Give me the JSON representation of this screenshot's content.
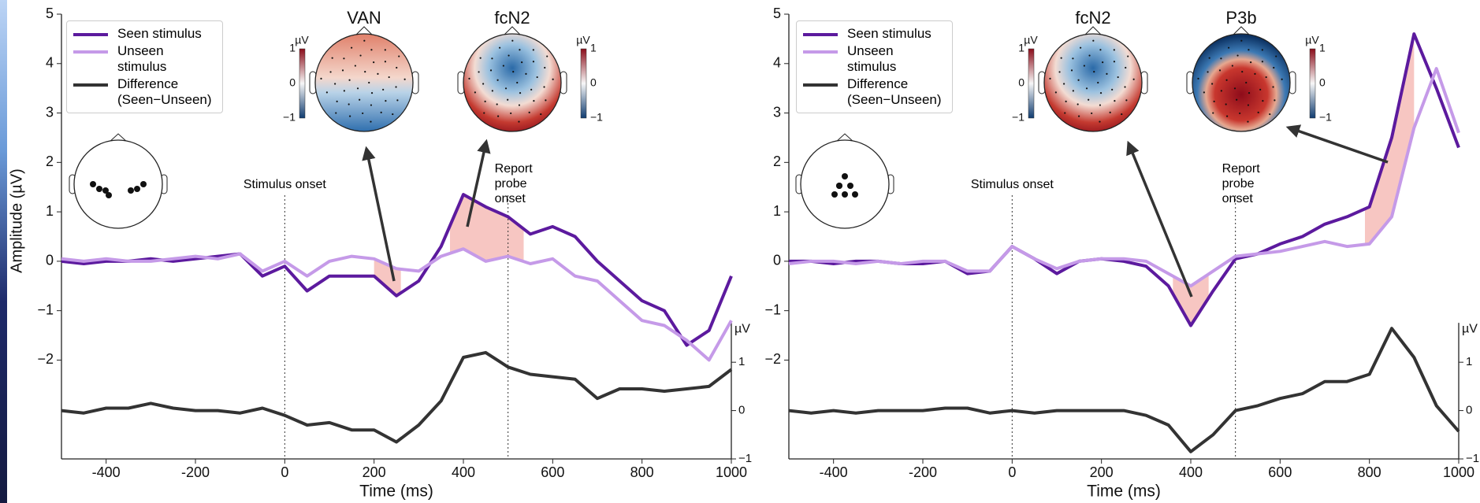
{
  "chart_data": [
    {
      "type": "line",
      "ylabel": "Amplitude (µV)",
      "xlabel": "Time (ms)",
      "y2label": "µV",
      "x": [
        -500,
        -450,
        -400,
        -350,
        -300,
        -250,
        -200,
        -150,
        -100,
        -50,
        0,
        50,
        100,
        150,
        200,
        250,
        300,
        350,
        400,
        450,
        500,
        550,
        600,
        650,
        700,
        750,
        800,
        850,
        900,
        950,
        1000
      ],
      "series": [
        {
          "name": "Seen stimulus",
          "color": "#5c1a9e",
          "values": [
            0,
            -0.05,
            0,
            0,
            0.05,
            0,
            0.05,
            0.1,
            0.15,
            -0.3,
            -0.1,
            -0.6,
            -0.3,
            -0.3,
            -0.3,
            -0.7,
            -0.4,
            0.3,
            1.35,
            1.1,
            0.9,
            0.55,
            0.7,
            0.5,
            0,
            -0.4,
            -0.8,
            -1.0,
            -1.7,
            -1.4,
            -0.3
          ]
        },
        {
          "name": "Unseen stimulus",
          "color": "#c59ae8",
          "values": [
            0.05,
            0,
            0.05,
            0,
            0,
            0.05,
            0.1,
            0.05,
            0.15,
            -0.2,
            0,
            -0.3,
            0,
            0.1,
            0.05,
            -0.15,
            -0.2,
            0.1,
            0.25,
            0,
            0.1,
            -0.05,
            0.05,
            -0.3,
            -0.4,
            -0.8,
            -1.2,
            -1.3,
            -1.6,
            -2.0,
            -1.2
          ]
        },
        {
          "name": "Difference (Seen−Unseen)",
          "color": "#333333",
          "axis": "y2",
          "values": [
            0,
            -0.05,
            0.05,
            0.05,
            0.15,
            0.05,
            0,
            0,
            -0.05,
            0.05,
            -0.1,
            -0.3,
            -0.25,
            -0.4,
            -0.4,
            -0.65,
            -0.3,
            0.2,
            1.1,
            1.2,
            0.9,
            0.75,
            0.7,
            0.65,
            0.25,
            0.45,
            0.45,
            0.4,
            0.45,
            0.5,
            0.85
          ]
        }
      ],
      "highlights": [
        [
          200,
          260
        ],
        [
          370,
          535
        ]
      ],
      "events": [
        {
          "x": 0,
          "label": "Stimulus onset"
        },
        {
          "x": 500,
          "label": "Report probe onset"
        }
      ],
      "xlim": [
        -500,
        1000
      ],
      "xticks": [
        -400,
        -200,
        0,
        200,
        400,
        600,
        800,
        1000
      ],
      "ylim": [
        -4,
        5
      ],
      "yticks": [
        {
          "value": -2,
          "label": "−2"
        },
        {
          "value": -1,
          "label": "−1"
        },
        0,
        1,
        2,
        3,
        4,
        5
      ],
      "y2lim": [
        -1,
        8.2
      ],
      "y2ticks": [
        {
          "value": -1,
          "label": "−1"
        },
        0,
        1
      ],
      "topomaps": [
        {
          "title": "VAN"
        },
        {
          "title": "fcN2"
        }
      ],
      "colorbar_label": "µV",
      "colorbar_ticks": [
        1,
        0,
        {
          "value": -1,
          "label": "−1"
        }
      ]
    },
    {
      "type": "line",
      "xlabel": "Time (ms)",
      "y2label": "µV",
      "x": [
        -500,
        -450,
        -400,
        -350,
        -300,
        -250,
        -200,
        -150,
        -100,
        -50,
        0,
        50,
        100,
        150,
        200,
        250,
        300,
        350,
        400,
        450,
        500,
        550,
        600,
        650,
        700,
        750,
        800,
        850,
        900,
        950,
        1000
      ],
      "series": [
        {
          "name": "Seen stimulus",
          "color": "#5c1a9e",
          "values": [
            0,
            0,
            -0.05,
            0,
            0,
            -0.05,
            -0.05,
            0,
            -0.25,
            -0.2,
            0.3,
            0.05,
            -0.25,
            0,
            0.05,
            0,
            -0.1,
            -0.5,
            -1.3,
            -0.6,
            0.05,
            0.15,
            0.35,
            0.5,
            0.75,
            0.9,
            1.1,
            2.5,
            4.6,
            3.5,
            2.3
          ]
        },
        {
          "name": "Unseen stimulus",
          "color": "#c59ae8",
          "values": [
            -0.05,
            0,
            0,
            -0.05,
            0,
            -0.05,
            0,
            0,
            -0.2,
            -0.2,
            0.3,
            0.05,
            -0.15,
            0,
            0.05,
            0.05,
            0,
            -0.25,
            -0.5,
            -0.2,
            0.1,
            0.15,
            0.2,
            0.3,
            0.4,
            0.3,
            0.35,
            0.9,
            2.7,
            3.9,
            2.6
          ]
        },
        {
          "name": "Difference (Seen−Unseen)",
          "color": "#333333",
          "axis": "y2",
          "values": [
            0,
            -0.05,
            0,
            -0.05,
            0,
            0,
            0,
            0.05,
            0.05,
            -0.05,
            0,
            -0.05,
            0,
            0,
            0,
            0,
            -0.1,
            -0.3,
            -0.85,
            -0.5,
            0,
            0.1,
            0.25,
            0.35,
            0.6,
            0.6,
            0.75,
            1.7,
            1.1,
            0.1,
            -0.43
          ]
        }
      ],
      "highlights": [
        [
          360,
          440
        ],
        [
          790,
          900
        ]
      ],
      "events": [
        {
          "x": 0,
          "label": "Stimulus onset"
        },
        {
          "x": 500,
          "label": "Report probe onset"
        }
      ],
      "xlim": [
        -500,
        1000
      ],
      "xticks": [
        -400,
        -200,
        0,
        200,
        400,
        600,
        800,
        1000
      ],
      "ylim": [
        -4,
        5
      ],
      "yticks": [
        {
          "value": -2,
          "label": "−2"
        },
        {
          "value": -1,
          "label": "−1"
        },
        0,
        1,
        2,
        3,
        4,
        5
      ],
      "y2lim": [
        -1,
        8.2
      ],
      "y2ticks": [
        {
          "value": -1,
          "label": "−1"
        },
        0,
        1
      ],
      "topomaps": [
        {
          "title": "fcN2"
        },
        {
          "title": "P3b"
        }
      ],
      "colorbar_label": "µV",
      "colorbar_ticks": [
        1,
        0,
        {
          "value": -1,
          "label": "−1"
        }
      ]
    }
  ]
}
